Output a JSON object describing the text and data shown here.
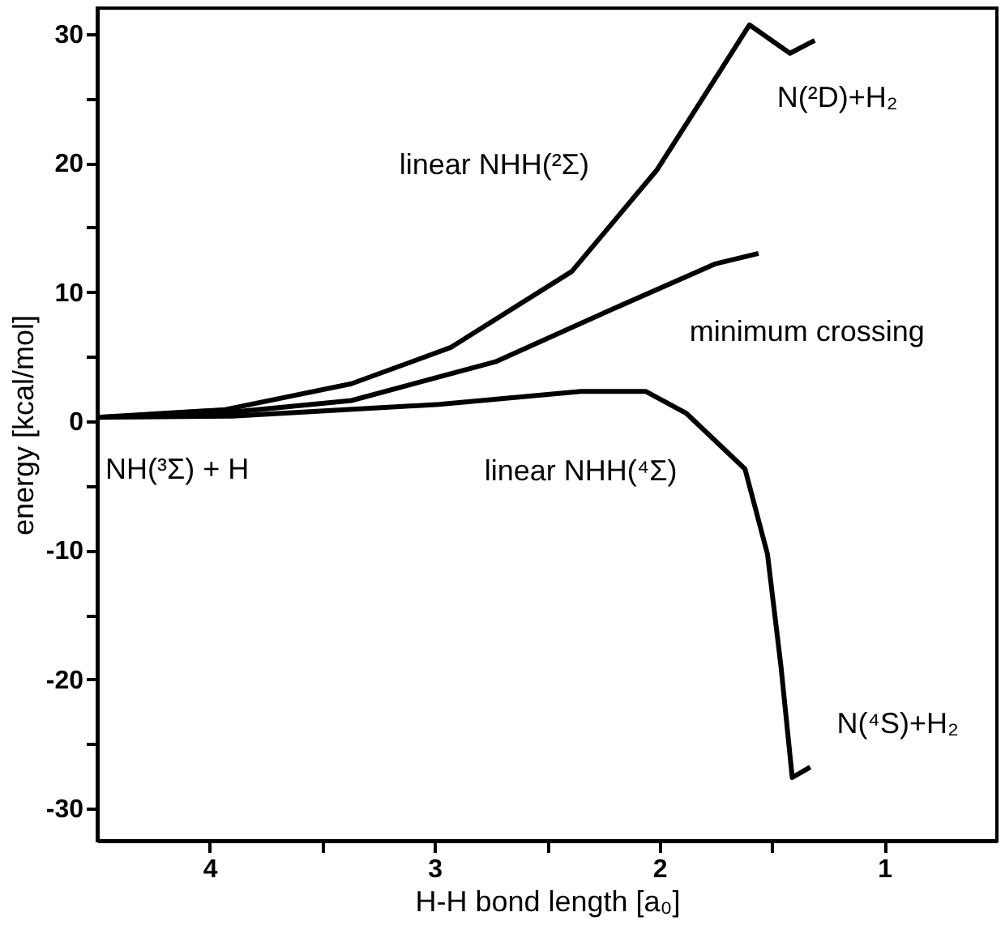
{
  "chart_data": {
    "type": "line",
    "xlabel": "H-H bond length [a₀]",
    "ylabel": "energy [kcal/mol]",
    "xlim": [
      4.5,
      0.5
    ],
    "xticks": [
      4,
      {
        "value": 3.5,
        "label": null
      },
      3,
      {
        "value": 2.5,
        "label": null
      },
      2,
      {
        "value": 1.5,
        "label": null
      },
      1
    ],
    "ylim": [
      -32.5,
      32
    ],
    "yticks": [
      -30,
      {
        "value": -25,
        "label": null
      },
      -20,
      {
        "value": -15,
        "label": null
      },
      -10,
      {
        "value": -5,
        "label": null
      },
      0,
      {
        "value": 5,
        "label": null
      },
      10,
      {
        "value": 15,
        "label": null
      },
      20,
      {
        "value": 25,
        "label": null
      },
      30
    ],
    "grid": false,
    "marker": "none",
    "line_style": "solid",
    "series": [
      {
        "name": "linear NHH(²Σ)",
        "color": "#000000",
        "x": [
          4.5,
          3.93,
          3.37,
          2.93,
          2.39,
          2.01,
          1.75,
          1.6,
          1.42,
          1.31
        ],
        "values": [
          0.3,
          0.9,
          2.9,
          5.7,
          11.6,
          19.5,
          26.6,
          30.7,
          28.5,
          29.5
        ]
      },
      {
        "name": "minimum crossing",
        "color": "#000000",
        "x": [
          4.5,
          3.9,
          3.37,
          2.73,
          2.22,
          1.75,
          1.56
        ],
        "values": [
          0.3,
          0.7,
          1.6,
          4.6,
          8.6,
          12.2,
          13
        ]
      },
      {
        "name": "linear NHH(⁴Σ)",
        "color": "#000000",
        "x": [
          4.5,
          3.9,
          2.98,
          2.35,
          2.06,
          1.88,
          1.62,
          1.52,
          1.46,
          1.41,
          1.33
        ],
        "values": [
          0.3,
          0.4,
          1.3,
          2.3,
          2.3,
          0.6,
          -3.7,
          -10.3,
          -19,
          -27.6,
          -26.8
        ]
      }
    ],
    "annotations": [
      {
        "text": "N(²D)+H₂",
        "x": 1.31,
        "y": 29.5
      },
      {
        "text": "NH(³Σ) + H",
        "x": 4.5,
        "y": 0.3
      },
      {
        "text": "N(⁴S)+H₂",
        "x": 1.33,
        "y": -26.8
      }
    ]
  }
}
